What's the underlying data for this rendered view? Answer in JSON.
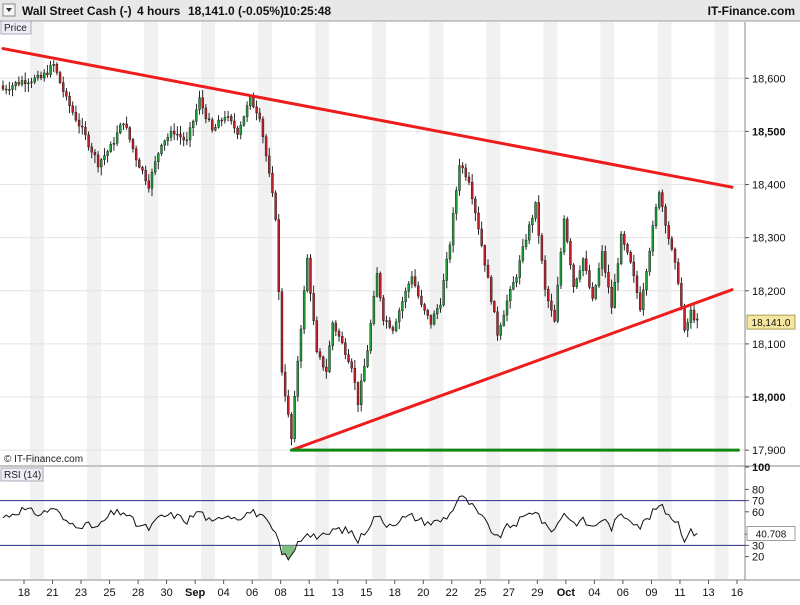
{
  "header": {
    "instrument": "Wall Street Cash (-)",
    "timeframe": "4 hours",
    "last_quote": "18,141.0 (-0.05%)",
    "time": "10:25:48",
    "brand": "IT-Finance.com"
  },
  "price_panel": {
    "label": "Price",
    "copyright": "© IT-Finance.com",
    "current_price_label": "18,141.0"
  },
  "rsi_panel": {
    "label": "RSI (14)",
    "current_value_label": "40.708"
  },
  "colors": {
    "trendline": "#ee1c1c",
    "support": "#118811",
    "bull_candle": "#1f9e3a",
    "bear_candle": "#c0202a",
    "rsi_line": "#111111",
    "rsi_level": "#2b2b88",
    "rsi_oversold_fill": "#7fc07f",
    "price_box": "#f5e6a0",
    "band": "#f1f1f1"
  },
  "chart_data": [
    {
      "type": "candlestick",
      "ylim": [
        17872,
        18706
      ],
      "y_ticks": [
        17900,
        18000,
        18100,
        18200,
        18300,
        18400,
        18500,
        18600
      ],
      "y_tick_labels": [
        "17,900",
        "18,000",
        "18,100",
        "18,200",
        "18,300",
        "18,400",
        "18,500",
        "18,600"
      ],
      "x_tick_labels": [
        "18",
        "21",
        "23",
        "25",
        "28",
        "30",
        "Sep",
        "04",
        "06",
        "08",
        "11",
        "13",
        "15",
        "18",
        "20",
        "22",
        "25",
        "27",
        "29",
        "Oct",
        "04",
        "06",
        "09",
        "11",
        "13",
        "16"
      ],
      "last_price": 18141.0,
      "anchors": [
        [
          0,
          18580
        ],
        [
          6,
          18595
        ],
        [
          12,
          18600
        ],
        [
          16,
          18625
        ],
        [
          20,
          18560
        ],
        [
          26,
          18490
        ],
        [
          30,
          18440
        ],
        [
          34,
          18470
        ],
        [
          38,
          18520
        ],
        [
          42,
          18450
        ],
        [
          46,
          18400
        ],
        [
          50,
          18480
        ],
        [
          54,
          18500
        ],
        [
          58,
          18480
        ],
        [
          62,
          18560
        ],
        [
          66,
          18500
        ],
        [
          70,
          18530
        ],
        [
          74,
          18500
        ],
        [
          78,
          18560
        ],
        [
          81,
          18530
        ],
        [
          86,
          18340
        ],
        [
          88,
          18050
        ],
        [
          91,
          17920
        ],
        [
          93,
          18070
        ],
        [
          96,
          18260
        ],
        [
          99,
          18080
        ],
        [
          102,
          18050
        ],
        [
          104,
          18140
        ],
        [
          107,
          18100
        ],
        [
          110,
          18060
        ],
        [
          112,
          17990
        ],
        [
          115,
          18090
        ],
        [
          118,
          18230
        ],
        [
          120,
          18150
        ],
        [
          123,
          18130
        ],
        [
          126,
          18180
        ],
        [
          129,
          18230
        ],
        [
          132,
          18170
        ],
        [
          135,
          18140
        ],
        [
          138,
          18180
        ],
        [
          141,
          18290
        ],
        [
          144,
          18440
        ],
        [
          147,
          18410
        ],
        [
          150,
          18320
        ],
        [
          153,
          18220
        ],
        [
          156,
          18120
        ],
        [
          159,
          18180
        ],
        [
          162,
          18230
        ],
        [
          165,
          18300
        ],
        [
          168,
          18360
        ],
        [
          171,
          18200
        ],
        [
          174,
          18140
        ],
        [
          177,
          18340
        ],
        [
          180,
          18210
        ],
        [
          183,
          18260
        ],
        [
          186,
          18180
        ],
        [
          189,
          18270
        ],
        [
          192,
          18170
        ],
        [
          195,
          18300
        ],
        [
          198,
          18250
        ],
        [
          201,
          18170
        ],
        [
          204,
          18280
        ],
        [
          207,
          18390
        ],
        [
          210,
          18300
        ],
        [
          213,
          18220
        ],
        [
          215,
          18120
        ],
        [
          217,
          18160
        ],
        [
          219,
          18141
        ]
      ],
      "trendlines": [
        {
          "name": "upper resistance",
          "x": [
            0,
            230
          ],
          "y": [
            18656,
            18395
          ]
        },
        {
          "name": "lower support",
          "x": [
            91,
            230
          ],
          "y": [
            17900,
            18202
          ]
        },
        {
          "name": "horizontal support",
          "x": [
            91,
            232
          ],
          "y": [
            17900,
            17900
          ]
        }
      ]
    },
    {
      "type": "line",
      "name": "RSI (14)",
      "ylim": [
        0,
        100
      ],
      "y_ticks": [
        20,
        30,
        40,
        60,
        70,
        80,
        100
      ],
      "levels": [
        30,
        70
      ],
      "last_value": 40.708,
      "anchors": [
        [
          0,
          55
        ],
        [
          6,
          62
        ],
        [
          12,
          58
        ],
        [
          16,
          64
        ],
        [
          20,
          50
        ],
        [
          26,
          48
        ],
        [
          30,
          46
        ],
        [
          34,
          58
        ],
        [
          38,
          60
        ],
        [
          42,
          49
        ],
        [
          46,
          45
        ],
        [
          50,
          56
        ],
        [
          54,
          57
        ],
        [
          58,
          52
        ],
        [
          62,
          61
        ],
        [
          66,
          49
        ],
        [
          70,
          58
        ],
        [
          74,
          55
        ],
        [
          78,
          60
        ],
        [
          81,
          58
        ],
        [
          86,
          40
        ],
        [
          88,
          22
        ],
        [
          91,
          19
        ],
        [
          93,
          32
        ],
        [
          96,
          42
        ],
        [
          99,
          38
        ],
        [
          102,
          38
        ],
        [
          104,
          44
        ],
        [
          107,
          44
        ],
        [
          110,
          42
        ],
        [
          112,
          34
        ],
        [
          115,
          46
        ],
        [
          118,
          58
        ],
        [
          120,
          49
        ],
        [
          123,
          50
        ],
        [
          126,
          54
        ],
        [
          129,
          56
        ],
        [
          132,
          52
        ],
        [
          135,
          50
        ],
        [
          138,
          52
        ],
        [
          141,
          58
        ],
        [
          144,
          74
        ],
        [
          147,
          68
        ],
        [
          150,
          58
        ],
        [
          153,
          48
        ],
        [
          156,
          36
        ],
        [
          159,
          46
        ],
        [
          162,
          50
        ],
        [
          165,
          56
        ],
        [
          168,
          62
        ],
        [
          171,
          47
        ],
        [
          174,
          44
        ],
        [
          177,
          60
        ],
        [
          180,
          50
        ],
        [
          183,
          52
        ],
        [
          186,
          46
        ],
        [
          189,
          54
        ],
        [
          192,
          46
        ],
        [
          195,
          58
        ],
        [
          198,
          54
        ],
        [
          201,
          47
        ],
        [
          204,
          56
        ],
        [
          207,
          66
        ],
        [
          210,
          58
        ],
        [
          213,
          50
        ],
        [
          215,
          36
        ],
        [
          217,
          42
        ],
        [
          219,
          40.708
        ]
      ]
    }
  ]
}
